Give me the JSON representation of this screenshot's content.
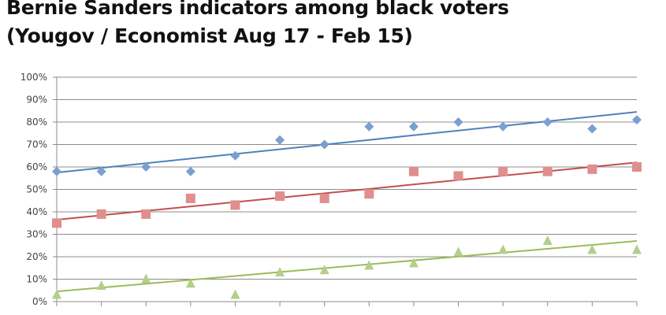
{
  "title_lines": [
    "Bernie Sanders indicators among black voters",
    "(Yougov / Economist Aug 17 - Feb 15)"
  ],
  "chart_data": {
    "type": "scatter",
    "title": "Bernie Sanders indicators among black voters (Yougov / Economist Aug 17 - Feb 15)",
    "xlabel": "",
    "ylabel": "",
    "x": [
      1,
      2,
      3,
      4,
      5,
      6,
      7,
      8,
      9,
      10,
      11,
      12,
      13,
      14
    ],
    "ylim": [
      0,
      100
    ],
    "y_ticks": [
      "0%",
      "10%",
      "20%",
      "30%",
      "40%",
      "50%",
      "60%",
      "70%",
      "80%",
      "90%",
      "100%"
    ],
    "grid": true,
    "legend": "none",
    "trendlines": true,
    "series": [
      {
        "marker": "diamond",
        "color": "#7a9fd0",
        "line_color": "#4f81bd",
        "values": [
          58,
          58,
          60,
          58,
          65,
          72,
          70,
          78,
          78,
          80,
          78,
          80,
          77,
          81
        ],
        "trend": [
          57.5,
          84.5
        ]
      },
      {
        "marker": "square",
        "color": "#e08e8e",
        "line_color": "#c0504d",
        "values": [
          35,
          39,
          39,
          46,
          43,
          47,
          46,
          48,
          58,
          56,
          58,
          58,
          59,
          60
        ],
        "trend": [
          36.5,
          62
        ]
      },
      {
        "marker": "triangle",
        "color": "#b3cf8a",
        "line_color": "#9bbb59",
        "values": [
          3,
          7,
          10,
          8,
          3,
          13,
          14,
          16,
          17,
          22,
          23,
          27,
          23,
          23
        ],
        "trend": [
          4.5,
          27
        ]
      }
    ]
  }
}
